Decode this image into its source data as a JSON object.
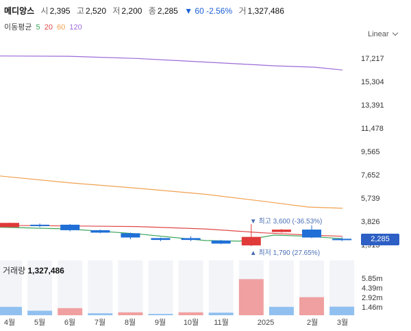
{
  "header": {
    "name": "메디앙스",
    "open_label": "시",
    "open": "2,395",
    "high_label": "고",
    "high": "2,520",
    "low_label": "저",
    "low": "2,200",
    "close_label": "종",
    "close": "2,285",
    "change": "▼ 60 -2.56%",
    "volume_label": "거",
    "volume": "1,327,486"
  },
  "moving_average": {
    "label": "이동평균",
    "periods": [
      {
        "value": "5",
        "color": "#3aa65a"
      },
      {
        "value": "20",
        "color": "#e04848"
      },
      {
        "value": "60",
        "color": "#f0a050"
      },
      {
        "value": "120",
        "color": "#9b6ad8"
      }
    ]
  },
  "scale_selector": "Linear",
  "current_price_tag": "2,285",
  "volume_panel": {
    "label": "거래량",
    "value": "1,327,486"
  },
  "annotations": {
    "high": "▼ 최고 3,600 (-36.53%)",
    "low": "▲ 최저 1,790 (27.65%)",
    "high_color": "#4a6fb5",
    "low_color": "#4a6fb5"
  },
  "colors": {
    "up": "#e03a3a",
    "down": "#1f6fd6",
    "up_vol": "#f0a0a0",
    "down_vol": "#90c0f0"
  },
  "chart_data": {
    "type": "candlestick",
    "y_ticks": [
      "17,217",
      "15,304",
      "13,391",
      "11,478",
      "9,565",
      "7,652",
      "5,739",
      "3,826",
      "1,913"
    ],
    "ylim": [
      1660,
      17850
    ],
    "x_ticks": [
      "4월",
      "5월",
      "6월",
      "7월",
      "8월",
      "9월",
      "10월",
      "11월",
      "2025",
      "2월",
      "3월"
    ],
    "candles": [
      {
        "open": 3700,
        "close": 3350,
        "high": 3720,
        "low": 3330,
        "dir": "up"
      },
      {
        "open": 3450,
        "close": 3550,
        "high": 3650,
        "low": 3350,
        "dir": "down"
      },
      {
        "open": 3550,
        "close": 3100,
        "high": 3600,
        "low": 3000,
        "dir": "down"
      },
      {
        "open": 3100,
        "close": 2900,
        "high": 3150,
        "low": 2850,
        "dir": "down"
      },
      {
        "open": 2850,
        "close": 2500,
        "high": 2900,
        "low": 2350,
        "dir": "down"
      },
      {
        "open": 2450,
        "close": 2300,
        "high": 2500,
        "low": 2200,
        "dir": "down"
      },
      {
        "open": 2450,
        "close": 2300,
        "high": 2600,
        "low": 2200,
        "dir": "down"
      },
      {
        "open": 2250,
        "close": 2000,
        "high": 2300,
        "low": 1950,
        "dir": "down"
      },
      {
        "open": 1850,
        "close": 2550,
        "high": 3600,
        "low": 1790,
        "dir": "up"
      },
      {
        "open": 2950,
        "close": 3150,
        "high": 3200,
        "low": 2900,
        "dir": "up"
      },
      {
        "open": 3150,
        "close": 2500,
        "high": 3500,
        "low": 2450,
        "dir": "down"
      },
      {
        "open": 2395,
        "close": 2285,
        "high": 2520,
        "low": 2200,
        "dir": "down"
      }
    ],
    "volume_ticks": [
      "5.85m",
      "4.39m",
      "2.92m",
      "1.46m"
    ],
    "volume_max": 8500000,
    "volumes": [
      {
        "value": 1300000,
        "dir": "down"
      },
      {
        "value": 700000,
        "dir": "down"
      },
      {
        "value": 1100000,
        "dir": "up"
      },
      {
        "value": 300000,
        "dir": "down"
      },
      {
        "value": 450000,
        "dir": "up"
      },
      {
        "value": 200000,
        "dir": "down"
      },
      {
        "value": 450000,
        "dir": "up"
      },
      {
        "value": 400000,
        "dir": "down"
      },
      {
        "value": 5600000,
        "dir": "up"
      },
      {
        "value": 1300000,
        "dir": "down"
      },
      {
        "value": 2800000,
        "dir": "up"
      },
      {
        "value": 1327486,
        "dir": "down"
      }
    ],
    "ma120": [
      [
        0,
        17400
      ],
      [
        100,
        17380
      ],
      [
        200,
        17200
      ],
      [
        300,
        16900
      ],
      [
        400,
        16600
      ],
      [
        460,
        16480
      ],
      [
        500,
        16250
      ]
    ],
    "ma60": [
      [
        0,
        7550
      ],
      [
        100,
        7000
      ],
      [
        200,
        6550
      ],
      [
        300,
        6050
      ],
      [
        380,
        5500
      ],
      [
        450,
        5000
      ],
      [
        500,
        4900
      ]
    ],
    "ma20": [
      [
        0,
        3500
      ],
      [
        100,
        3450
      ],
      [
        200,
        3400
      ],
      [
        300,
        3200
      ],
      [
        380,
        2900
      ],
      [
        450,
        2700
      ],
      [
        500,
        2600
      ]
    ],
    "ma5": [
      [
        0,
        3350
      ],
      [
        100,
        3200
      ],
      [
        200,
        2800
      ],
      [
        300,
        2250
      ],
      [
        350,
        2200
      ],
      [
        400,
        2700
      ],
      [
        450,
        2600
      ],
      [
        500,
        2400
      ]
    ]
  }
}
